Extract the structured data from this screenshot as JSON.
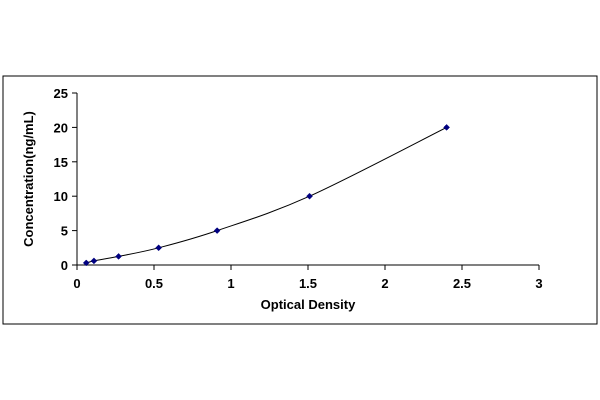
{
  "chart_data": {
    "type": "line",
    "title": "",
    "xlabel": "Optical Density",
    "ylabel": "Concentration(ng/mL)",
    "xlim": [
      0,
      3
    ],
    "ylim": [
      0,
      25
    ],
    "x_ticks": [
      "0",
      "0.5",
      "1",
      "1.5",
      "2",
      "2.5",
      "3"
    ],
    "y_ticks": [
      "0",
      "5",
      "10",
      "15",
      "20",
      "25"
    ],
    "x_tick_values": [
      0,
      0.5,
      1,
      1.5,
      2,
      2.5,
      3
    ],
    "y_tick_values": [
      0,
      5,
      10,
      15,
      20,
      25
    ],
    "grid": false,
    "legend": "none",
    "series": [
      {
        "x": [
          0.06,
          0.11,
          0.27,
          0.53,
          0.91,
          1.51,
          2.4
        ],
        "y": [
          0.3,
          0.6,
          1.25,
          2.5,
          5,
          10,
          20
        ],
        "color": "#000080",
        "marker": "diamond",
        "line_color": "#000000"
      }
    ]
  }
}
